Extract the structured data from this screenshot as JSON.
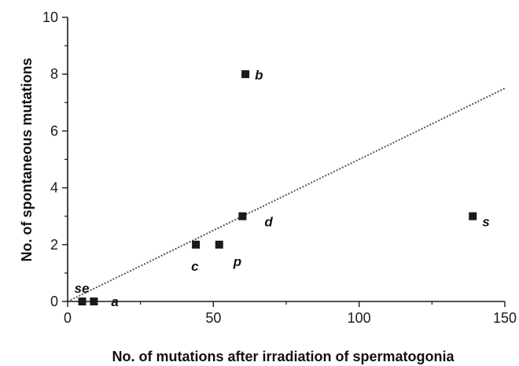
{
  "chart_data": {
    "type": "scatter",
    "title": "",
    "xlabel": "No. of mutations after irradiation of spermatogonia",
    "ylabel": "No. of spontaneous mutations",
    "xlim": [
      0,
      150
    ],
    "ylim": [
      0,
      10
    ],
    "x_ticks": [
      0,
      50,
      100,
      150
    ],
    "y_ticks": [
      0,
      2,
      4,
      6,
      8,
      10
    ],
    "x_tick_labels": [
      "0",
      "50",
      "100",
      "150"
    ],
    "y_tick_labels": [
      "0",
      "2",
      "4",
      "6",
      "8",
      "10"
    ],
    "grid": false,
    "series": [
      {
        "points": [
          {
            "label": "se",
            "x": 5,
            "y": 0
          },
          {
            "label": "a",
            "x": 9,
            "y": 0
          },
          {
            "label": "c",
            "x": 44,
            "y": 2
          },
          {
            "label": "p",
            "x": 52,
            "y": 2
          },
          {
            "label": "d",
            "x": 60,
            "y": 3
          },
          {
            "label": "b",
            "x": 61,
            "y": 8
          },
          {
            "label": "s",
            "x": 139,
            "y": 3
          }
        ]
      }
    ],
    "trendline": {
      "style": "dotted",
      "x": [
        0,
        150
      ],
      "y": [
        0,
        7.5
      ]
    },
    "colors": {
      "marker": "#1a1a1a",
      "axis": "#1a1a1a",
      "trendline": "#555555"
    }
  }
}
